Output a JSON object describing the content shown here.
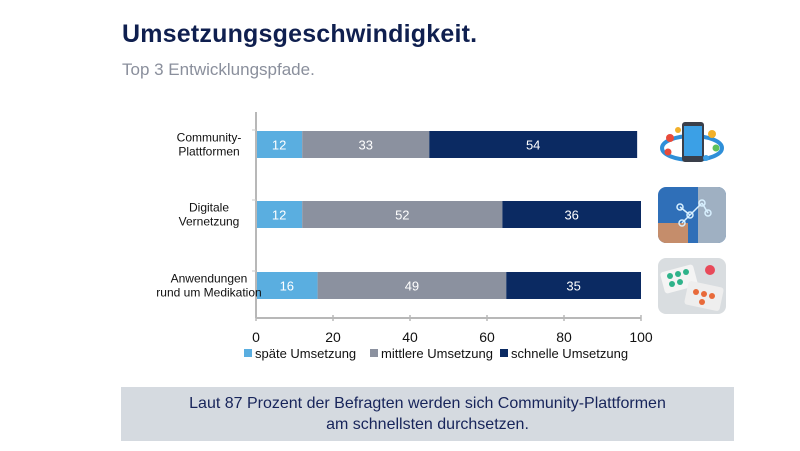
{
  "header": {
    "title": "Umsetzungsgeschwindigkeit.",
    "subtitle": "Top 3 Entwicklungspfade."
  },
  "chart_data": {
    "type": "bar",
    "orientation": "horizontal",
    "stacked": true,
    "categories": [
      [
        "Community-",
        "Plattformen"
      ],
      [
        "Digitale",
        "Vernetzung"
      ],
      [
        "Anwendungen",
        "rund um Medikation"
      ]
    ],
    "series": [
      {
        "name": "späte Umsetzung",
        "color": "#5aaee0",
        "values": [
          12,
          12,
          16
        ]
      },
      {
        "name": "mittlere Umsetzung",
        "color": "#8b919f",
        "values": [
          33,
          52,
          49
        ]
      },
      {
        "name": "schnelle Umsetzung",
        "color": "#0b2a62",
        "values": [
          54,
          36,
          35
        ]
      }
    ],
    "xlim": [
      0,
      100
    ],
    "xticks": [
      "0",
      "20",
      "40",
      "60",
      "80",
      "100"
    ],
    "title": "",
    "xlabel": "",
    "ylabel": "",
    "legend": "bottom",
    "grid": false
  },
  "images": [
    {
      "name": "smartphone-apps-image",
      "description": "smartphone with app icons"
    },
    {
      "name": "doctor-network-image",
      "description": "doctor with digital network"
    },
    {
      "name": "medication-pills-image",
      "description": "pill blister packs"
    }
  ],
  "callout": {
    "line1": "Laut 87 Prozent der Befragten werden sich Community-Plattformen",
    "line2": "am schnellsten durchsetzen."
  }
}
